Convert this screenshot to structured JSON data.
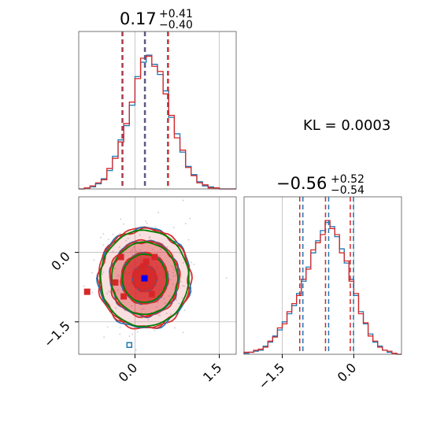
{
  "chart_data": {
    "type": "corner",
    "colors": {
      "series_a": "#1f77b4",
      "series_b": "#d62728",
      "contour_extra": "#008000",
      "marker_point": "#0000ff",
      "grid": "#b0b0b0"
    },
    "kl_text": "KL = 0.0003",
    "params": [
      {
        "title_main": "0.17",
        "title_plus": "+0.41",
        "title_minus": "−0.40",
        "xlim": [
          -1.0,
          1.8
        ],
        "quantile_lines": [
          -0.23,
          0.17,
          0.58
        ]
      },
      {
        "title_main": "−0.56",
        "title_plus": "+0.52",
        "title_minus": "−0.54",
        "xlim": [
          -2.3,
          1.0
        ],
        "quantile_lines": [
          -1.1,
          -0.56,
          -0.04
        ]
      }
    ],
    "hist_1": {
      "bin_edges": [
        -1.0,
        -0.9,
        -0.8,
        -0.7,
        -0.6,
        -0.5,
        -0.4,
        -0.3,
        -0.2,
        -0.1,
        0.0,
        0.1,
        0.2,
        0.3,
        0.4,
        0.5,
        0.6,
        0.7,
        0.8,
        0.9,
        1.0,
        1.1,
        1.2,
        1.3,
        1.4,
        1.5,
        1.6,
        1.7,
        1.8
      ],
      "series_a_counts": [
        0,
        1,
        2,
        5,
        10,
        18,
        32,
        48,
        62,
        82,
        110,
        124,
        131,
        122,
        112,
        96,
        70,
        54,
        36,
        22,
        14,
        7,
        3,
        2,
        1,
        0,
        0,
        0
      ],
      "series_b_counts": [
        0,
        1,
        3,
        6,
        9,
        20,
        30,
        46,
        64,
        85,
        108,
        128,
        130,
        120,
        115,
        93,
        72,
        50,
        38,
        21,
        13,
        6,
        4,
        1,
        1,
        0,
        0,
        0
      ]
    },
    "hist_2": {
      "bin_edges": [
        -2.3,
        -2.2,
        -2.1,
        -2.0,
        -1.9,
        -1.8,
        -1.7,
        -1.6,
        -1.5,
        -1.4,
        -1.3,
        -1.2,
        -1.1,
        -1.0,
        -0.9,
        -0.8,
        -0.7,
        -0.6,
        -0.5,
        -0.4,
        -0.3,
        -0.2,
        -0.1,
        0.0,
        0.1,
        0.2,
        0.3,
        0.4,
        0.5,
        0.6,
        0.7,
        0.8,
        0.9,
        1.0
      ],
      "series_a_counts": [
        1,
        2,
        3,
        4,
        8,
        12,
        18,
        24,
        32,
        40,
        48,
        60,
        72,
        86,
        100,
        112,
        122,
        130,
        126,
        116,
        104,
        90,
        74,
        58,
        42,
        30,
        20,
        12,
        8,
        4,
        2,
        1,
        0
      ],
      "series_b_counts": [
        2,
        2,
        4,
        5,
        7,
        13,
        17,
        26,
        30,
        42,
        50,
        58,
        74,
        84,
        103,
        110,
        118,
        132,
        124,
        118,
        100,
        92,
        72,
        60,
        40,
        31,
        18,
        13,
        7,
        4,
        3,
        1,
        0
      ]
    },
    "joint": {
      "xlim": [
        -1.0,
        1.8
      ],
      "ylim": [
        -2.2,
        1.2
      ],
      "center": [
        0.17,
        -0.56
      ],
      "sigma": [
        0.4,
        0.53
      ],
      "contour_levels_sigma": [
        0.5,
        1.0,
        1.5,
        2.0
      ],
      "marker": [
        0.17,
        -0.56
      ],
      "outlier_squares": [
        [
          -0.25,
          -0.1
        ],
        [
          0.35,
          -0.1
        ],
        [
          0.3,
          -0.9
        ],
        [
          -0.2,
          -0.95
        ],
        [
          -0.35,
          -0.65
        ],
        [
          0.15,
          -0.3
        ],
        [
          -0.85,
          -0.85
        ],
        [
          0.2,
          -0.2
        ]
      ]
    },
    "x_ticks": {
      "param1": [
        0.0,
        1.5
      ],
      "param2": [
        -1.5,
        0.0
      ]
    },
    "y_ticks": {
      "param2": [
        0.0,
        -1.5
      ]
    },
    "tick_labels": {
      "param1": [
        "0.0",
        "1.5"
      ],
      "param2_x": [
        "−1.5",
        "0.0"
      ],
      "param2_y": [
        "0.0",
        "−1.5"
      ]
    }
  }
}
